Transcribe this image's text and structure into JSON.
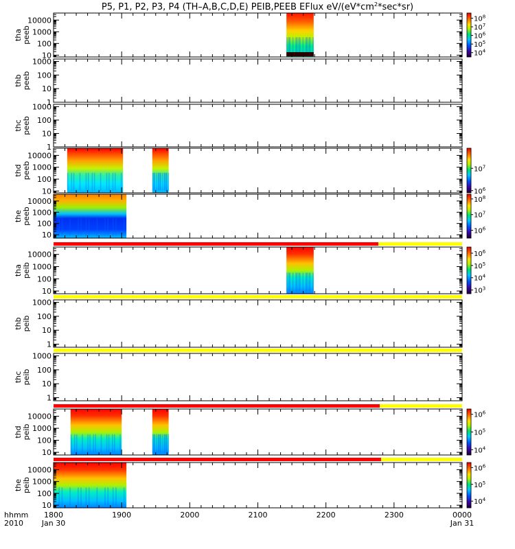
{
  "title": "P5, P1, P2, P3, P4 (TH–A,B,C,D,E) PEIB,PEEB EFlux eV/(eV*cm²*sec*sr)",
  "time_axis": {
    "label": "hhmm",
    "year": "2010",
    "start_date": "Jan 30",
    "end_date": "Jan 31",
    "ticks": [
      "1800",
      "1900",
      "2000",
      "2100",
      "2200",
      "2300",
      "0000"
    ]
  },
  "chart_data": {
    "type": "heatmap",
    "x_unit": "hours UT",
    "x_range": [
      18.0,
      24.0
    ],
    "log_y": true,
    "panels": [
      {
        "id": "thd_peeb_top",
        "ylabel": [
          "tha",
          "peeb"
        ],
        "yrange": [
          7,
          40000
        ],
        "yticks": [
          "10",
          "100",
          "1000",
          "10000"
        ],
        "blocks": [
          [
            21.42,
            21.82
          ]
        ],
        "dark_bottom": true,
        "colorbar": {
          "ticks": [
            "10⁴",
            "10⁵",
            "10⁶",
            "10⁷",
            "10⁸"
          ],
          "range_exp": [
            3.5,
            8.6
          ]
        }
      },
      {
        "id": "thb_peeb",
        "ylabel": [
          "thb",
          "peeb"
        ],
        "yrange": [
          1,
          1500
        ],
        "yticks": [
          "1",
          "10",
          "100",
          "1000"
        ],
        "blocks": []
      },
      {
        "id": "thc_peeb",
        "ylabel": [
          "thc",
          "peeb"
        ],
        "yrange": [
          1,
          1500
        ],
        "yticks": [
          "1",
          "10",
          "100",
          "1000"
        ],
        "blocks": []
      },
      {
        "id": "thd_peeb",
        "ylabel": [
          "thd",
          "peeb"
        ],
        "yrange": [
          7,
          40000
        ],
        "yticks": [
          "10",
          "100",
          "1000",
          "10000"
        ],
        "blocks": [
          [
            18.2,
            19.02
          ],
          [
            19.45,
            19.69
          ]
        ],
        "colorbar": {
          "ticks": [
            "10⁶",
            "10⁷"
          ],
          "range_exp": [
            5.9,
            7.9
          ]
        }
      },
      {
        "id": "the_peeb",
        "ylabel": [
          "the",
          "peeb"
        ],
        "yrange": [
          5,
          40000
        ],
        "yticks": [
          "10",
          "100",
          "1000",
          "10000"
        ],
        "blocks": [
          [
            18.0,
            19.07
          ]
        ],
        "style": "blue_core",
        "colorbar": {
          "ticks": [
            "10⁶",
            "10⁷",
            "10⁸"
          ],
          "range_exp": [
            5.5,
            8.3
          ]
        }
      },
      {
        "id": "tha_peib",
        "ylabel": [
          "tha",
          "peib"
        ],
        "yrange": [
          6,
          40000
        ],
        "yticks": [
          "10",
          "100",
          "1000",
          "10000"
        ],
        "blocks": [
          [
            21.42,
            21.82
          ]
        ],
        "status_bar": {
          "red_until": 22.77
        },
        "colorbar": {
          "ticks": [
            "10³",
            "10⁴",
            "10⁵",
            "10⁶"
          ],
          "range_exp": [
            2.7,
            6.5
          ]
        }
      },
      {
        "id": "thb_peib",
        "ylabel": [
          "thb",
          "peib"
        ],
        "yrange": [
          0.6,
          1500
        ],
        "yticks": [
          "1",
          "10",
          "100",
          "1000"
        ],
        "blocks": [],
        "status_bar": {
          "red_until": 18.0
        }
      },
      {
        "id": "thc_peib",
        "ylabel": [
          "thc",
          "peib"
        ],
        "yrange": [
          0.6,
          1500
        ],
        "yticks": [
          "1",
          "10",
          "100",
          "1000"
        ],
        "blocks": [],
        "status_bar": {
          "red_until": 18.0
        }
      },
      {
        "id": "thd_peib",
        "ylabel": [
          "thd",
          "peib"
        ],
        "yrange": [
          6,
          40000
        ],
        "yticks": [
          "10",
          "100",
          "1000",
          "10000"
        ],
        "blocks": [
          [
            18.25,
            19.0
          ],
          [
            19.45,
            19.69
          ]
        ],
        "status_bar": {
          "red_until": 22.79
        },
        "colorbar": {
          "ticks": [
            "10⁴",
            "10⁵",
            "10⁶"
          ],
          "range_exp": [
            3.7,
            6.3
          ]
        }
      },
      {
        "id": "the_peib",
        "ylabel": [
          "the",
          "peib"
        ],
        "yrange": [
          6,
          40000
        ],
        "yticks": [
          "10",
          "100",
          "1000",
          "10000"
        ],
        "blocks": [
          [
            18.0,
            19.07
          ]
        ],
        "status_bar": {
          "red_until": 22.81
        },
        "colorbar": {
          "ticks": [
            "10⁴",
            "10⁵",
            "10⁶"
          ],
          "range_exp": [
            3.6,
            6.3
          ]
        }
      }
    ]
  },
  "colors": {
    "status_red": "#ff0000",
    "status_yellow": "#ffff00",
    "axis": "#000000"
  }
}
